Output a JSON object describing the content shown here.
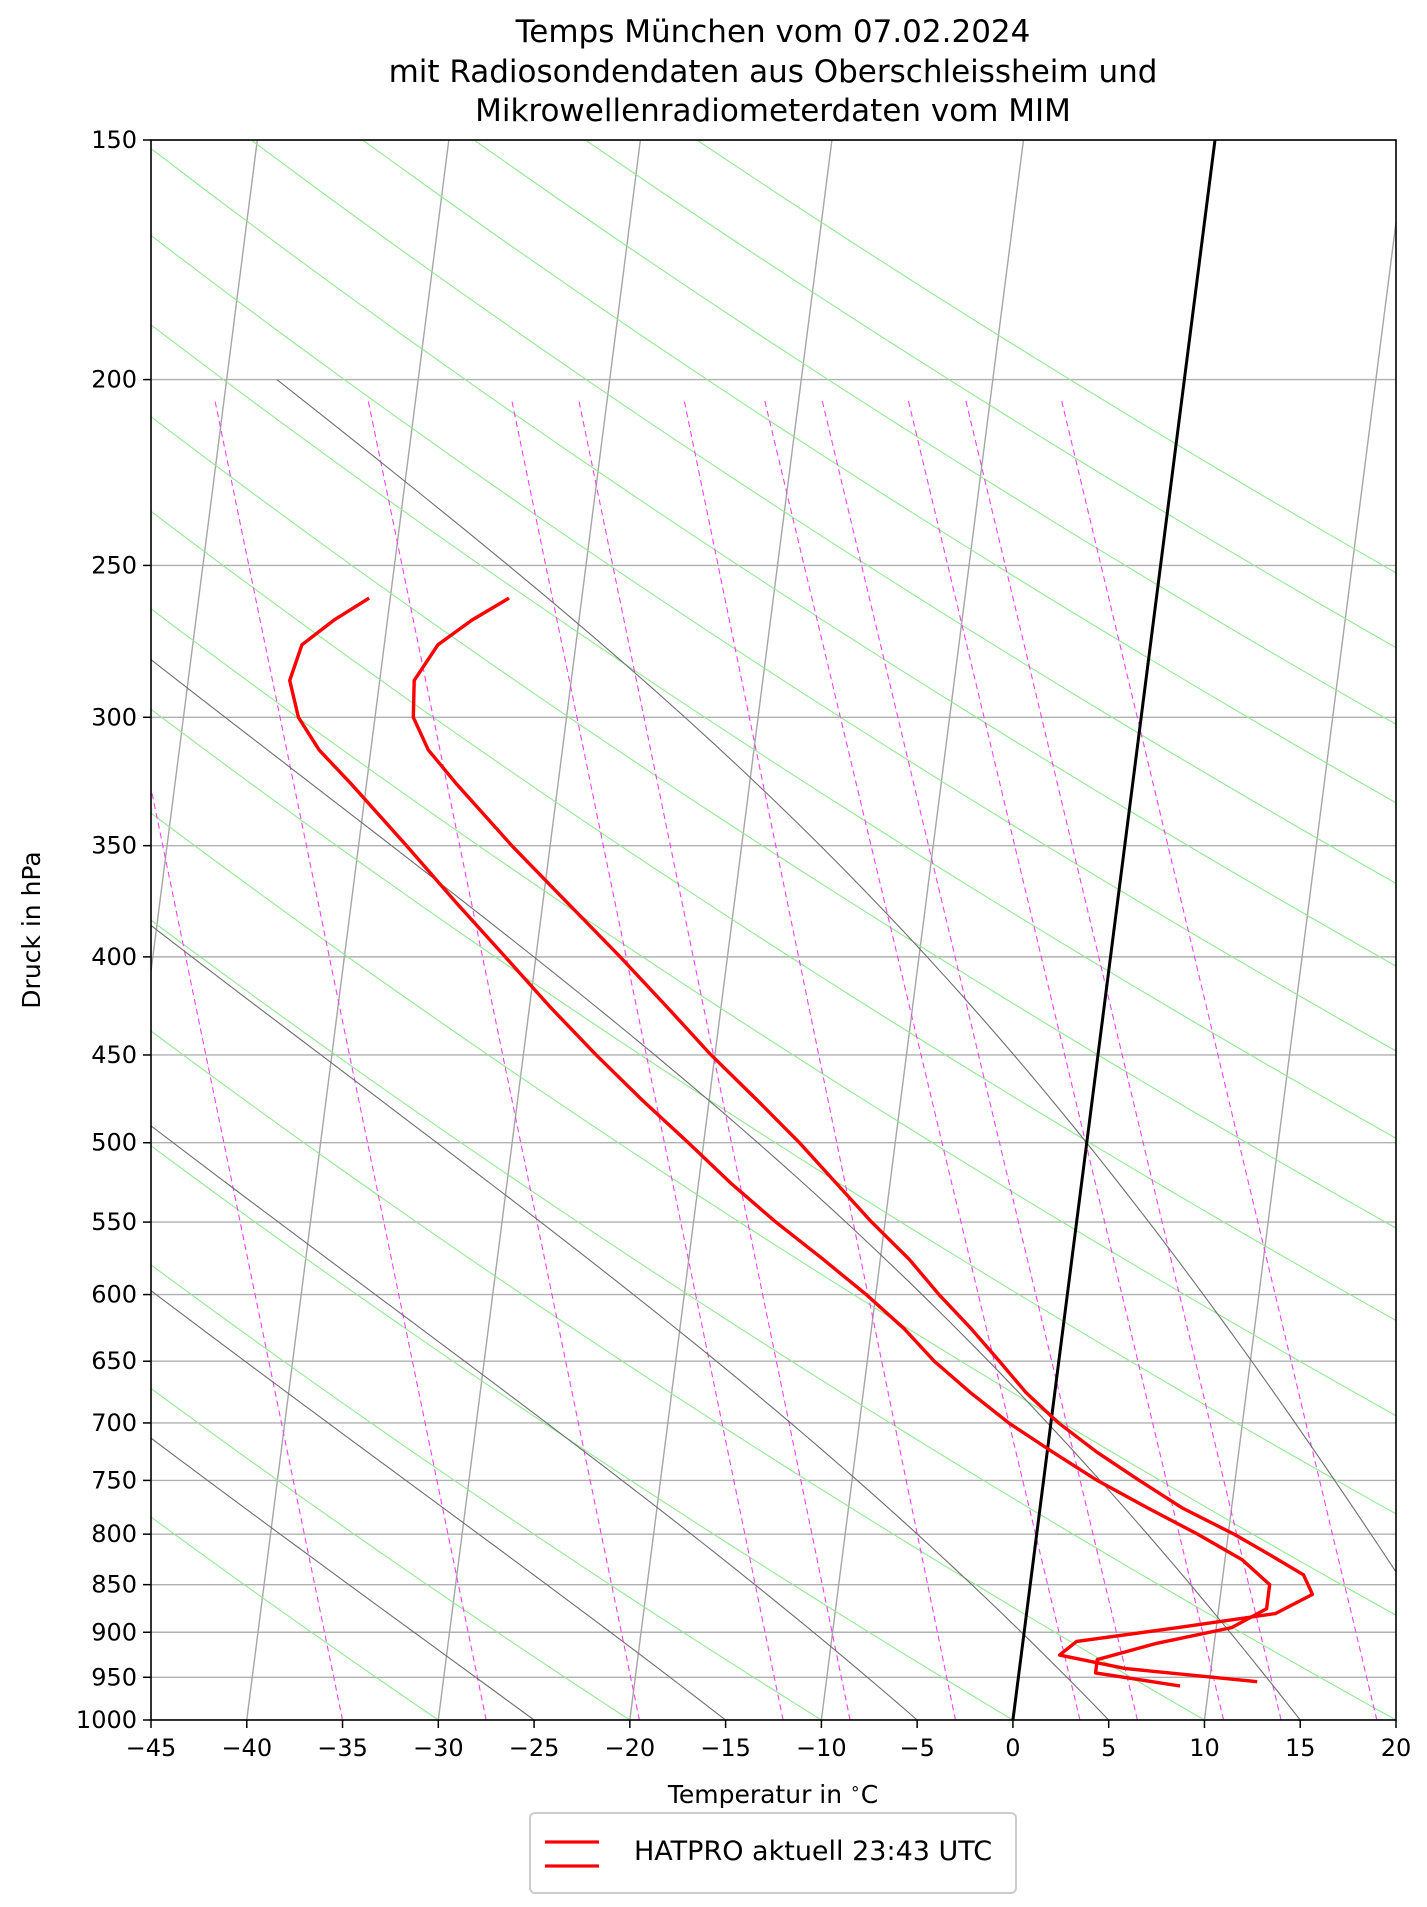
{
  "chart_data": {
    "type": "line",
    "diagram": "Skew-T log-P",
    "title": "Temps München vom 07.02.2024",
    "subtitle_lines": [
      "mit Radiosondendaten aus Oberschleissheim und",
      "Mikrowellenradiometerdaten vom MIM"
    ],
    "xlabel": "Temperatur in $^\\circ$C",
    "ylabel": "Druck in hPa",
    "xlim": [
      -45,
      20
    ],
    "ylim": [
      1000,
      150
    ],
    "y_scale": "log",
    "x_ticks": [
      -45,
      -40,
      -35,
      -30,
      -25,
      -20,
      -15,
      -10,
      -5,
      0,
      5,
      10,
      15,
      20
    ],
    "x_tick_labels": [
      "−45",
      "−40",
      "−35",
      "−30",
      "−25",
      "−20",
      "−15",
      "−10",
      "−5",
      "0",
      "5",
      "10",
      "15",
      "20"
    ],
    "y_ticks": [
      1000,
      950,
      900,
      850,
      800,
      750,
      700,
      650,
      600,
      550,
      500,
      450,
      400,
      350,
      300,
      250,
      200,
      150
    ],
    "y_tick_labels": [
      "1000",
      "950",
      "900",
      "850",
      "800",
      "750",
      "700",
      "650",
      "600",
      "550",
      "500",
      "450",
      "400",
      "350",
      "300",
      "250",
      "200",
      "150"
    ],
    "grid": true,
    "legend_position": "bottom-center, below plot",
    "series": [
      {
        "name": "HATPRO aktuell 23:43 UTC",
        "color": "#ff0000",
        "points": [
          {
            "p": 955,
            "t": 12.5
          },
          {
            "p": 940,
            "t": 5.5
          },
          {
            "p": 925,
            "t": 2.0
          },
          {
            "p": 910,
            "t": 2.8
          },
          {
            "p": 895,
            "t": 8.0
          },
          {
            "p": 880,
            "t": 13.0
          },
          {
            "p": 860,
            "t": 14.8
          },
          {
            "p": 840,
            "t": 14.2
          },
          {
            "p": 820,
            "t": 12.3
          },
          {
            "p": 800,
            "t": 10.3
          },
          {
            "p": 775,
            "t": 7.4
          },
          {
            "p": 750,
            "t": 5.0
          },
          {
            "p": 725,
            "t": 2.6
          },
          {
            "p": 700,
            "t": 0.4
          },
          {
            "p": 675,
            "t": -1.5
          },
          {
            "p": 650,
            "t": -3.1
          },
          {
            "p": 625,
            "t": -4.8
          },
          {
            "p": 600,
            "t": -6.7
          },
          {
            "p": 575,
            "t": -8.5
          },
          {
            "p": 550,
            "t": -10.7
          },
          {
            "p": 525,
            "t": -12.8
          },
          {
            "p": 500,
            "t": -15.0
          },
          {
            "p": 475,
            "t": -17.5
          },
          {
            "p": 450,
            "t": -20.2
          },
          {
            "p": 425,
            "t": -22.8
          },
          {
            "p": 400,
            "t": -25.6
          },
          {
            "p": 375,
            "t": -28.7
          },
          {
            "p": 350,
            "t": -32.0
          },
          {
            "p": 325,
            "t": -35.3
          },
          {
            "p": 312,
            "t": -37.0
          },
          {
            "p": 300,
            "t": -38.0
          },
          {
            "p": 287,
            "t": -38.2
          },
          {
            "p": 275,
            "t": -37.2
          },
          {
            "p": 267,
            "t": -35.6
          },
          {
            "p": 260,
            "t": -33.8
          }
        ]
      },
      {
        "name": "HATPRO aktuell 23:43 UTC",
        "color": "#ff0000",
        "points": [
          {
            "p": 960,
            "t": 8.5
          },
          {
            "p": 945,
            "t": 4.0
          },
          {
            "p": 930,
            "t": 4.0
          },
          {
            "p": 912,
            "t": 7.0
          },
          {
            "p": 895,
            "t": 10.8
          },
          {
            "p": 875,
            "t": 12.5
          },
          {
            "p": 850,
            "t": 12.5
          },
          {
            "p": 825,
            "t": 10.9
          },
          {
            "p": 800,
            "t": 8.4
          },
          {
            "p": 775,
            "t": 5.6
          },
          {
            "p": 750,
            "t": 2.8
          },
          {
            "p": 725,
            "t": 0.3
          },
          {
            "p": 700,
            "t": -2.2
          },
          {
            "p": 675,
            "t": -4.4
          },
          {
            "p": 650,
            "t": -6.5
          },
          {
            "p": 625,
            "t": -8.3
          },
          {
            "p": 600,
            "t": -10.5
          },
          {
            "p": 575,
            "t": -13.0
          },
          {
            "p": 550,
            "t": -15.7
          },
          {
            "p": 525,
            "t": -18.3
          },
          {
            "p": 500,
            "t": -20.8
          },
          {
            "p": 475,
            "t": -23.5
          },
          {
            "p": 450,
            "t": -26.2
          },
          {
            "p": 425,
            "t": -28.9
          },
          {
            "p": 400,
            "t": -31.6
          },
          {
            "p": 375,
            "t": -34.5
          },
          {
            "p": 350,
            "t": -37.5
          },
          {
            "p": 325,
            "t": -40.8
          },
          {
            "p": 312,
            "t": -42.7
          },
          {
            "p": 300,
            "t": -44.0
          },
          {
            "p": 287,
            "t": -44.7
          },
          {
            "p": 275,
            "t": -44.3
          },
          {
            "p": 267,
            "t": -42.8
          },
          {
            "p": 260,
            "t": -41.1
          }
        ]
      }
    ],
    "reference_lines": {
      "isotherm_0C": {
        "color": "#000000",
        "t": 0
      },
      "isotherms": {
        "color": "#a6a6a6",
        "t": [
          -120,
          -110,
          -100,
          -90,
          -80,
          -70,
          -60,
          -50,
          -40,
          -30,
          -20,
          -10,
          0,
          10,
          20,
          30,
          40,
          50
        ]
      },
      "dry_adiabats": {
        "color": "#92e992",
        "theta_C": [
          -30,
          -20,
          -10,
          0,
          10,
          20,
          30,
          40,
          50,
          60,
          70,
          80,
          90,
          100,
          110,
          120,
          130,
          140,
          150
        ]
      },
      "moist_adiabats": {
        "color": "#6e6e6e",
        "t_1000": [
          -25,
          -15,
          -5,
          5,
          15,
          25
        ]
      },
      "mixing_ratio_lines": {
        "color": "#ee44ee",
        "t_1000": [
          -35,
          -27.5,
          -19.5,
          -12,
          -8.5,
          -3,
          3.5,
          6.5,
          11,
          14,
          19
        ]
      }
    }
  },
  "legend": {
    "label": "HATPRO aktuell 23:43 UTC"
  },
  "text": {
    "title_line1": "Temps München vom 07.02.2024",
    "title_line2": "mit Radiosondendaten aus Oberschleissheim und",
    "title_line3": "Mikrowellenradiometerdaten vom MIM",
    "xlabel": "Temperatur in $^\\circ$C",
    "ylabel": "Druck in hPa"
  }
}
